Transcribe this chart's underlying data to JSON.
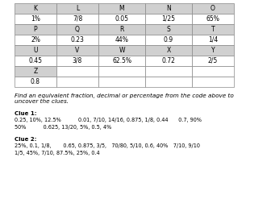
{
  "table_headers": [
    "K",
    "L",
    "M",
    "N",
    "O"
  ],
  "table_rows": [
    [
      "1%",
      "7/8",
      "0.05",
      "1/25",
      "65%"
    ],
    [
      "P",
      "Q",
      "R",
      "S",
      "T"
    ],
    [
      "2%",
      "0.23",
      "44%",
      "0.9",
      "1/4"
    ],
    [
      "U",
      "V",
      "W",
      "X",
      "Y"
    ],
    [
      "0.45",
      "3/8",
      "62.5%",
      "0.72",
      "2/5"
    ]
  ],
  "extra_rows": [
    [
      "Z",
      "",
      "",
      "",
      ""
    ],
    [
      "0.8",
      "",
      "",
      "",
      ""
    ]
  ],
  "description": "Find an equivalent fraction, decimal or percentage from the code above to\nuncover the clues.",
  "clue1_title": "Clue 1:",
  "clue1_line1": "0.25, 10%, 12.5%          0.01, 7/10, 14/16, 0.875, 1/8, 0.44      0.7, 90%",
  "clue1_line2": "50%          0.625, 13/20, 5%, 0.5, 4%",
  "clue2_title": "Clue 2:",
  "clue2_line1": "25%, 0.1, 1/8,       0.65, 0.875, 3/5,   70/80, 5/10, 0.6, 40%   7/10, 9/10",
  "clue2_line2": "1/5, 45%, 7/10, 87.5%, 25%, 0.4",
  "header_bg": "#d0d0d0",
  "letter_bg": "#d0d0d0",
  "value_bg": "#ffffff",
  "extra_letter_bg": "#d0d0d0",
  "extra_value_bg": "#ffffff",
  "border_color": "#888888",
  "font_size": 5.5,
  "clue_font_size": 5.0,
  "title_font_size": 5.2
}
